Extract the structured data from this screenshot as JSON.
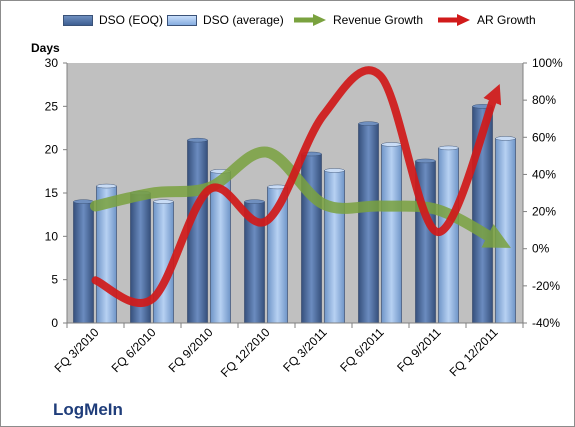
{
  "chart_data": {
    "type": "bar",
    "categories": [
      "FQ 3/2010",
      "FQ 6/2010",
      "FQ 9/2010",
      "FQ 12/2010",
      "FQ 3/2011",
      "FQ 6/2011",
      "FQ 9/2011",
      "FQ 12/2011"
    ],
    "series": [
      {
        "name": "DSO (EOQ)",
        "axis": "left",
        "type": "bar",
        "values": [
          14,
          15,
          21.1,
          14,
          19.5,
          23,
          18.7,
          25
        ],
        "color": "#4a6a9c"
      },
      {
        "name": "DSO (average)",
        "axis": "left",
        "type": "bar",
        "values": [
          15.8,
          14,
          17.5,
          15.7,
          17.6,
          20.6,
          20.2,
          21.3
        ],
        "color": "#8fb4e3"
      },
      {
        "name": "Revenue Growth",
        "axis": "right",
        "type": "line",
        "values": [
          0.23,
          0.3,
          0.33,
          0.52,
          0.24,
          0.23,
          0.21,
          0.05
        ],
        "color": "#7aa23f"
      },
      {
        "name": "AR Growth",
        "axis": "right",
        "type": "line",
        "values": [
          -0.17,
          -0.27,
          0.32,
          0.15,
          0.72,
          0.93,
          0.09,
          0.82
        ],
        "color": "#d11a1a"
      }
    ],
    "left_axis": {
      "title": "Days",
      "ylim": [
        0,
        30
      ],
      "ticks": [
        "0",
        "5",
        "10",
        "15",
        "20",
        "25",
        "30"
      ]
    },
    "right_axis": {
      "ylim": [
        -0.4,
        1.0
      ],
      "ticks": [
        "-40%",
        "-20%",
        "0%",
        "20%",
        "40%",
        "60%",
        "80%",
        "100%"
      ]
    },
    "legend_position": "top",
    "grid": false,
    "plot_background": "#c0c0c0",
    "annotation": "LogMeIn"
  }
}
